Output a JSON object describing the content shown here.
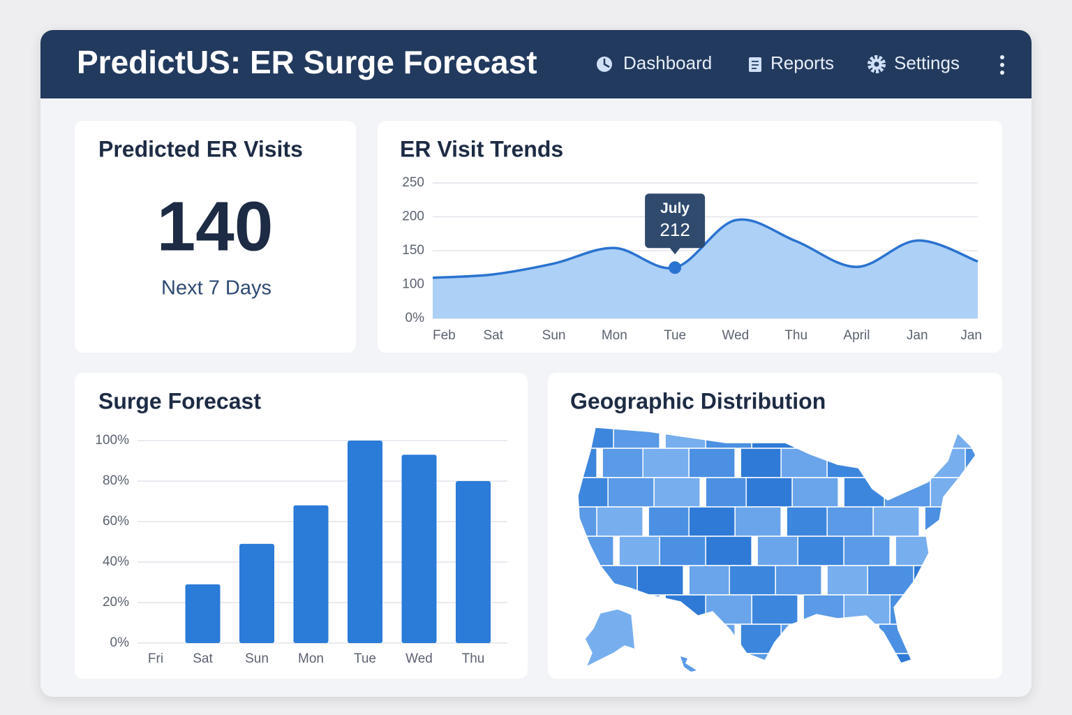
{
  "header": {
    "title": "PredictUS: ER Surge Forecast",
    "nav": [
      "Dashboard",
      "Reports",
      "Settings"
    ]
  },
  "kpi": {
    "title": "Predicted ER Visits",
    "value": 140,
    "caption": "Next 7 Days"
  },
  "chart_data": [
    {
      "type": "line",
      "title": "ER Visit Trends",
      "categories": [
        "Feb",
        "Sat",
        "Sun",
        "Mon",
        "Tue",
        "Wed",
        "Thu",
        "April",
        "Jan",
        "Jan"
      ],
      "values": [
        110,
        115,
        131,
        154,
        125,
        195,
        164,
        126,
        165,
        134
      ],
      "color": "#2a73d0",
      "fill": "#a9cdf6",
      "ylim": [
        0,
        250
      ],
      "yticks": [
        {
          "value": 0,
          "label": "0%"
        },
        100,
        150,
        200,
        250
      ],
      "grid": true,
      "annotation": {
        "title": "July",
        "value": 212
      }
    },
    {
      "type": "bar",
      "title": "Surge Forecast",
      "categories": [
        "Fri",
        "Sat",
        "Sun",
        "Mon",
        "Tue",
        "Wed",
        "Thu"
      ],
      "values": [
        0,
        29,
        49,
        68,
        100,
        93,
        80
      ],
      "color": "#2b7bd8",
      "ylim": [
        0,
        100
      ],
      "yticks": [
        {
          "value": 0,
          "label": "0%"
        },
        {
          "value": 20,
          "label": "20%"
        },
        {
          "value": 40,
          "label": "40%"
        },
        {
          "value": 60,
          "label": "60%"
        },
        {
          "value": 80,
          "label": "80%"
        },
        {
          "value": 100,
          "label": "100%"
        }
      ],
      "grid": true
    }
  ],
  "map": {
    "title": "Geographic Distribution"
  }
}
